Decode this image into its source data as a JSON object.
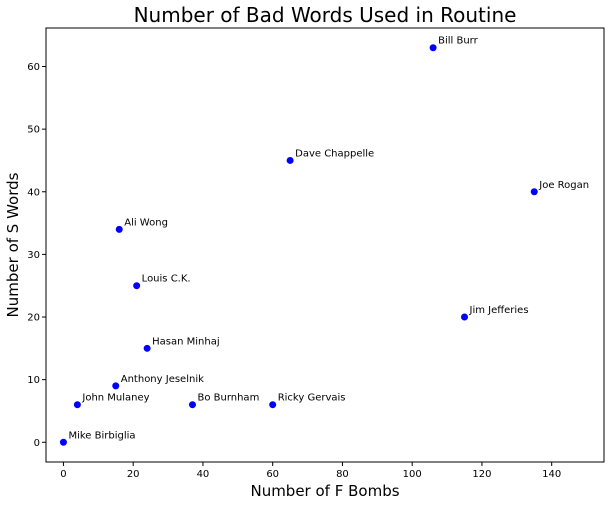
{
  "chart_data": {
    "type": "scatter",
    "title": "Number of Bad Words Used in Routine",
    "xlabel": "Number of F Bombs",
    "ylabel": "Number of S Words",
    "xlim": [
      -5,
      155
    ],
    "ylim": [
      -3.15,
      66.15
    ],
    "xticks": [
      0,
      20,
      40,
      60,
      80,
      100,
      120,
      140
    ],
    "yticks": [
      0,
      10,
      20,
      30,
      40,
      50,
      60
    ],
    "grid": false,
    "point_color": "#0000ff",
    "points": [
      {
        "label": "Mike Birbiglia",
        "x": 0,
        "y": 0
      },
      {
        "label": "John Mulaney",
        "x": 4,
        "y": 6
      },
      {
        "label": "Anthony Jeselnik",
        "x": 15,
        "y": 9
      },
      {
        "label": "Ali Wong",
        "x": 16,
        "y": 34
      },
      {
        "label": "Louis C.K.",
        "x": 21,
        "y": 25
      },
      {
        "label": "Hasan Minhaj",
        "x": 24,
        "y": 15
      },
      {
        "label": "Bo Burnham",
        "x": 37,
        "y": 6
      },
      {
        "label": "Ricky Gervais",
        "x": 60,
        "y": 6
      },
      {
        "label": "Dave Chappelle",
        "x": 65,
        "y": 45
      },
      {
        "label": "Bill Burr",
        "x": 106,
        "y": 63
      },
      {
        "label": "Jim Jefferies",
        "x": 115,
        "y": 20
      },
      {
        "label": "Joe Rogan",
        "x": 135,
        "y": 40
      }
    ]
  }
}
